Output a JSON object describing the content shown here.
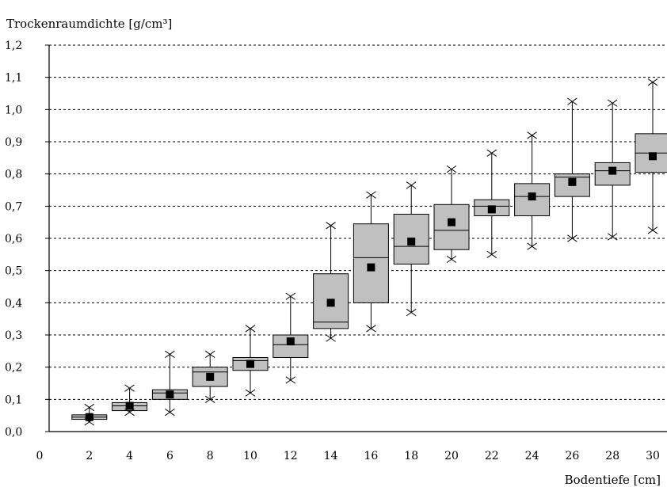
{
  "chart_data": {
    "type": "box",
    "ylabel": "Trockenraumdichte [g/cm³]",
    "xlabel": "Bodentiefe [cm]",
    "ylim": [
      0,
      1.2
    ],
    "xlim": [
      0,
      30
    ],
    "yticks": [
      "0,0",
      "0,1",
      "0,2",
      "0,3",
      "0,4",
      "0,5",
      "0,6",
      "0,7",
      "0,8",
      "0,9",
      "1,0",
      "1,1",
      "1,2"
    ],
    "xticks": [
      "0",
      "2",
      "4",
      "6",
      "8",
      "10",
      "12",
      "14",
      "16",
      "18",
      "20",
      "22",
      "24",
      "26",
      "28",
      "30"
    ],
    "grid": "horizontal dashed",
    "colors": {
      "box_fill": "#c0c0c0",
      "mean": "#000000",
      "grid": "#000000"
    },
    "boxes": [
      {
        "x": 2,
        "min": 0.03,
        "q1": 0.038,
        "median": 0.045,
        "q3": 0.052,
        "max": 0.075,
        "mean": 0.045
      },
      {
        "x": 4,
        "min": 0.06,
        "q1": 0.065,
        "median": 0.08,
        "q3": 0.09,
        "max": 0.135,
        "mean": 0.08
      },
      {
        "x": 6,
        "min": 0.06,
        "q1": 0.1,
        "median": 0.12,
        "q3": 0.13,
        "max": 0.24,
        "mean": 0.115
      },
      {
        "x": 8,
        "min": 0.1,
        "q1": 0.14,
        "median": 0.185,
        "q3": 0.2,
        "max": 0.24,
        "mean": 0.17
      },
      {
        "x": 10,
        "min": 0.12,
        "q1": 0.19,
        "median": 0.22,
        "q3": 0.23,
        "max": 0.32,
        "mean": 0.21
      },
      {
        "x": 12,
        "min": 0.16,
        "q1": 0.23,
        "median": 0.27,
        "q3": 0.3,
        "max": 0.42,
        "mean": 0.28
      },
      {
        "x": 14,
        "min": 0.29,
        "q1": 0.32,
        "median": 0.34,
        "q3": 0.49,
        "max": 0.64,
        "mean": 0.4
      },
      {
        "x": 16,
        "min": 0.32,
        "q1": 0.4,
        "median": 0.54,
        "q3": 0.645,
        "max": 0.735,
        "mean": 0.51
      },
      {
        "x": 18,
        "min": 0.37,
        "q1": 0.52,
        "median": 0.575,
        "q3": 0.675,
        "max": 0.765,
        "mean": 0.59
      },
      {
        "x": 20,
        "min": 0.535,
        "q1": 0.565,
        "median": 0.625,
        "q3": 0.705,
        "max": 0.815,
        "mean": 0.65
      },
      {
        "x": 22,
        "min": 0.55,
        "q1": 0.67,
        "median": 0.7,
        "q3": 0.72,
        "max": 0.865,
        "mean": 0.69
      },
      {
        "x": 24,
        "min": 0.575,
        "q1": 0.67,
        "median": 0.73,
        "q3": 0.77,
        "max": 0.92,
        "mean": 0.73
      },
      {
        "x": 26,
        "min": 0.6,
        "q1": 0.73,
        "median": 0.79,
        "q3": 0.8,
        "max": 1.025,
        "mean": 0.775
      },
      {
        "x": 28,
        "min": 0.605,
        "q1": 0.765,
        "median": 0.81,
        "q3": 0.835,
        "max": 1.02,
        "mean": 0.81
      },
      {
        "x": 30,
        "min": 0.625,
        "q1": 0.805,
        "median": 0.865,
        "q3": 0.925,
        "max": 1.085,
        "mean": 0.855
      }
    ]
  }
}
